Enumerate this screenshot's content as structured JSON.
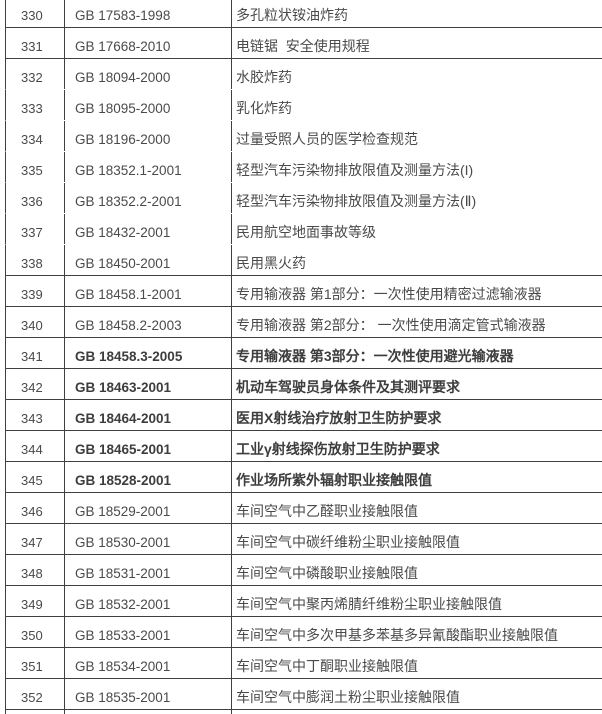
{
  "colors": {
    "background": "#ffffff",
    "table_border": "#3f3f3f",
    "text": "#4a4a4a"
  },
  "table": {
    "description": "standards-list-table",
    "rows": [
      {
        "num": "330",
        "code": "GB 17583-1998",
        "title": "多孔粒状铵油炸药",
        "bold": false,
        "divider_above": true
      },
      {
        "num": "331",
        "code": "GB 17668-2010",
        "title": "电链锯  安全使用规程",
        "bold": false,
        "divider_above": true
      },
      {
        "num": "332",
        "code": "GB 18094-2000",
        "title": "水胶炸药",
        "bold": false,
        "divider_above": true
      },
      {
        "num": "333",
        "code": "GB 18095-2000",
        "title": "乳化炸药",
        "bold": false,
        "divider_above": false
      },
      {
        "num": "334",
        "code": "GB 18196-2000",
        "title": "过量受照人员的医学检查规范",
        "bold": false,
        "divider_above": false
      },
      {
        "num": "335",
        "code": "GB 18352.1-2001",
        "title": "轻型汽车污染物排放限值及测量方法(I)",
        "bold": false,
        "divider_above": false
      },
      {
        "num": "336",
        "code": "GB 18352.2-2001",
        "title": "轻型汽车污染物排放限值及测量方法(Ⅱ)",
        "bold": false,
        "divider_above": false
      },
      {
        "num": "337",
        "code": "GB 18432-2001",
        "title": "民用航空地面事故等级",
        "bold": false,
        "divider_above": false
      },
      {
        "num": "338",
        "code": "GB 18450-2001",
        "title": "民用黑火药",
        "bold": false,
        "divider_above": false
      },
      {
        "num": "339",
        "code": "GB 18458.1-2001",
        "title": "专用输液器 第1部分：一次性使用精密过滤输液器",
        "bold": false,
        "divider_above": true
      },
      {
        "num": "340",
        "code": "GB 18458.2-2003",
        "title": "专用输液器 第2部分： 一次性使用滴定管式输液器",
        "bold": false,
        "divider_above": true
      },
      {
        "num": "341",
        "code": "GB 18458.3-2005",
        "title": "专用输液器 第3部分：一次性使用避光输液器",
        "bold": true,
        "divider_above": true
      },
      {
        "num": "342",
        "code": "GB 18463-2001",
        "title": "机动车驾驶员身体条件及其测评要求",
        "bold": true,
        "divider_above": true
      },
      {
        "num": "343",
        "code": "GB 18464-2001",
        "title": "医用X射线治疗放射卫生防护要求",
        "bold": true,
        "divider_above": true
      },
      {
        "num": "344",
        "code": "GB 18465-2001",
        "title": "工业γ射线探伤放射卫生防护要求",
        "bold": true,
        "divider_above": true
      },
      {
        "num": "345",
        "code": "GB 18528-2001",
        "title": "作业场所紫外辐射职业接触限值",
        "bold": true,
        "divider_above": true
      },
      {
        "num": "346",
        "code": "GB 18529-2001",
        "title": "车间空气中乙醛职业接触限值",
        "bold": false,
        "divider_above": true
      },
      {
        "num": "347",
        "code": "GB 18530-2001",
        "title": "车间空气中碳纤维粉尘职业接触限值",
        "bold": false,
        "divider_above": true
      },
      {
        "num": "348",
        "code": "GB 18531-2001",
        "title": "车间空气中磷酸职业接触限值",
        "bold": false,
        "divider_above": true
      },
      {
        "num": "349",
        "code": "GB 18532-2001",
        "title": "车间空气中聚丙烯腈纤维粉尘职业接触限值",
        "bold": false,
        "divider_above": true
      },
      {
        "num": "350",
        "code": "GB 18533-2001",
        "title": "车间空气中多次甲基多苯基多异氰酸酯职业接触限值",
        "bold": false,
        "divider_above": true
      },
      {
        "num": "351",
        "code": "GB 18534-2001",
        "title": "车间空气中丁酮职业接触限值",
        "bold": false,
        "divider_above": true
      },
      {
        "num": "352",
        "code": "GB 18535-2001",
        "title": "车间空气中膨润土粉尘职业接触限值",
        "bold": false,
        "divider_above": true
      }
    ],
    "clipped_next_row": {
      "num": "",
      "code": "",
      "title": "",
      "bold": false,
      "divider_above": true
    }
  }
}
